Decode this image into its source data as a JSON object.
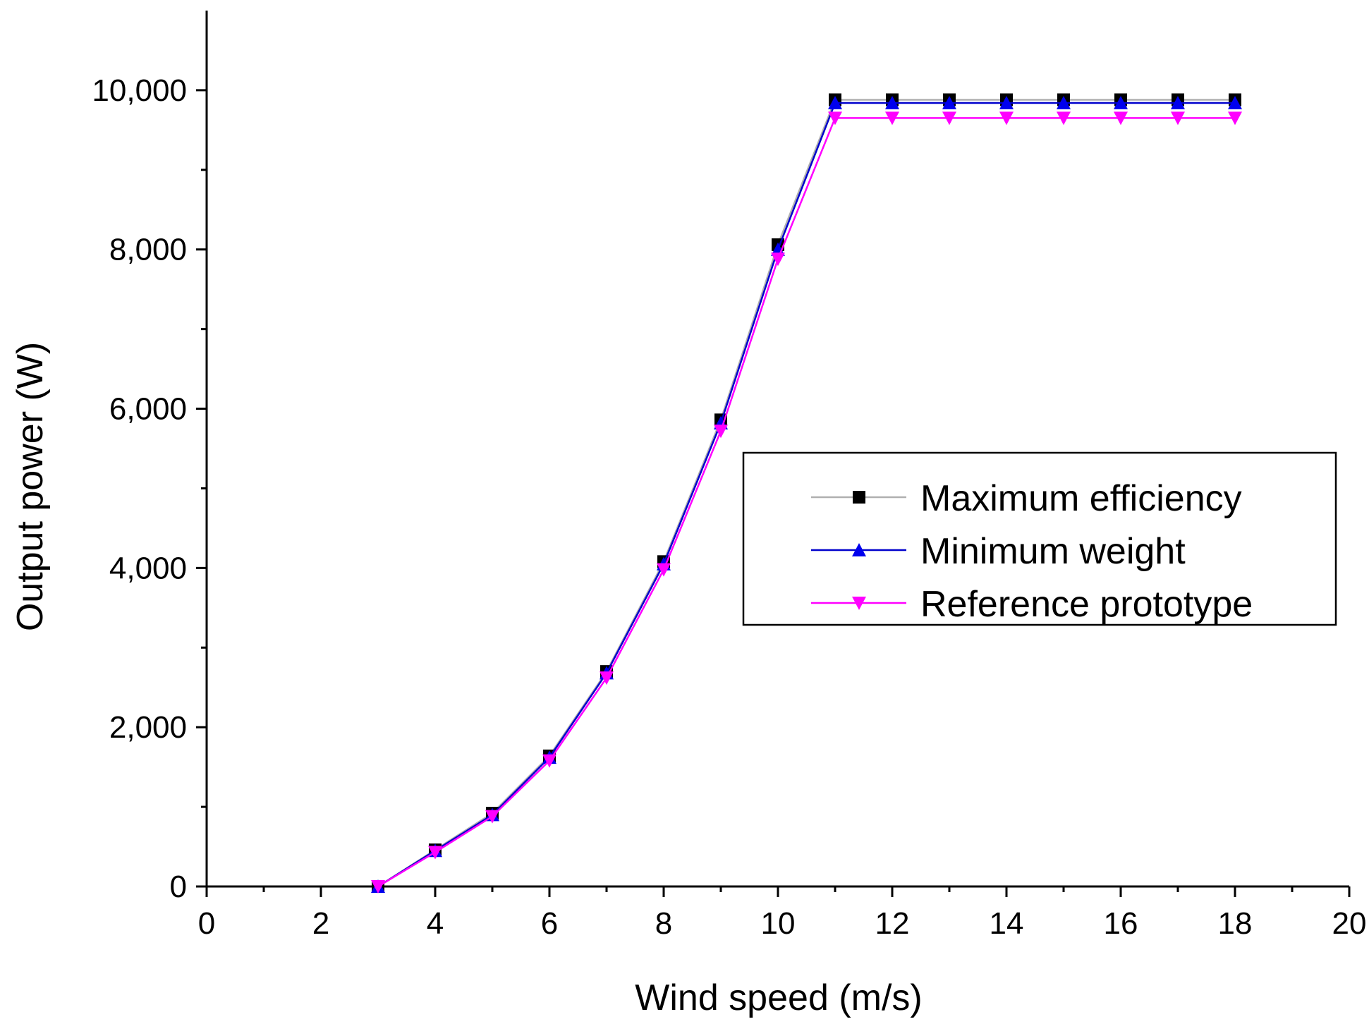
{
  "chart_data": {
    "type": "line",
    "title": "",
    "xlabel": "Wind speed (m/s)",
    "ylabel": "Output power (W)",
    "xlim": [
      0,
      20
    ],
    "ylim": [
      0,
      11000
    ],
    "x_ticks": [
      0,
      2,
      4,
      6,
      8,
      10,
      12,
      14,
      16,
      18,
      20
    ],
    "x_tick_labels": [
      "0",
      "2",
      "4",
      "6",
      "8",
      "10",
      "12",
      "14",
      "16",
      "18",
      "20"
    ],
    "y_ticks": [
      0,
      2000,
      4000,
      6000,
      8000,
      10000
    ],
    "y_tick_labels": [
      "0",
      "2,000",
      "4,000",
      "6,000",
      "8,000",
      "10,000"
    ],
    "grid": false,
    "legend_position": "right-center",
    "x": [
      3,
      4,
      5,
      6,
      7,
      8,
      9,
      10,
      11,
      12,
      13,
      14,
      15,
      16,
      17,
      18
    ],
    "series": [
      {
        "name": "Maximum efficiency",
        "line_color": "#b0b0b0",
        "marker_color": "#000000",
        "marker": "square",
        "values": [
          0,
          460,
          920,
          1640,
          2700,
          4080,
          5860,
          8060,
          9880,
          9880,
          9880,
          9880,
          9880,
          9880,
          9880,
          9880
        ]
      },
      {
        "name": "Minimum weight",
        "line_color": "#0000cc",
        "marker_color": "#0000ee",
        "marker": "triangle-up",
        "values": [
          0,
          450,
          900,
          1620,
          2680,
          4050,
          5820,
          8000,
          9840,
          9840,
          9840,
          9840,
          9840,
          9840,
          9840,
          9840
        ]
      },
      {
        "name": "Reference prototype",
        "line_color": "#ff00ff",
        "marker_color": "#ff00ff",
        "marker": "triangle-down",
        "values": [
          0,
          430,
          880,
          1580,
          2620,
          3980,
          5720,
          7880,
          9650,
          9650,
          9650,
          9650,
          9650,
          9650,
          9650,
          9650
        ]
      }
    ]
  }
}
